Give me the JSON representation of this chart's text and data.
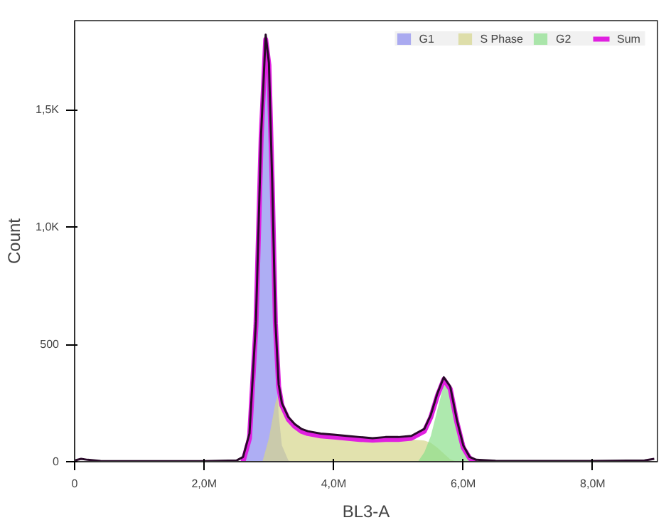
{
  "chart_data": {
    "type": "area",
    "xlabel": "BL3-A",
    "ylabel": "Count",
    "xlim": [
      0,
      9000000
    ],
    "ylim": [
      0,
      1880
    ],
    "xticks": [
      0,
      {
        "value": 2000000,
        "label": "2,0M"
      },
      {
        "value": 4000000,
        "label": "4,0M"
      },
      {
        "value": 6000000,
        "label": "6,0M"
      },
      {
        "value": 8000000,
        "label": "8,0M"
      }
    ],
    "yticks": [
      0,
      500,
      {
        "value": 1000,
        "label": "1,0K"
      },
      {
        "value": 1500,
        "label": "1,5K"
      }
    ],
    "grid": false,
    "legend": "top right",
    "marker": "none",
    "line_style": "solid",
    "series": [
      {
        "name": "G1",
        "color": "#8c8cf0",
        "x": [
          2600000,
          2700000,
          2800000,
          2880000,
          2950000,
          3000000,
          3050000,
          3100000,
          3150000,
          3200000,
          3300000,
          3350000
        ],
        "values": [
          0,
          100,
          580,
          1380,
          1800,
          1650,
          1100,
          500,
          200,
          70,
          5,
          0
        ]
      },
      {
        "name": "S Phase",
        "color": "#d6d68c",
        "x": [
          2900000,
          3000000,
          3100000,
          3150000,
          3200000,
          3300000,
          3400000,
          3500000,
          3600000,
          3800000,
          4000000,
          4200000,
          4400000,
          4600000,
          4800000,
          5000000,
          5200000,
          5400000,
          5500000,
          5600000,
          5700000,
          5800000,
          5900000
        ],
        "values": [
          0,
          100,
          250,
          290,
          250,
          180,
          150,
          130,
          120,
          110,
          105,
          100,
          95,
          92,
          95,
          95,
          95,
          90,
          80,
          60,
          35,
          10,
          0
        ]
      },
      {
        "name": "G2",
        "color": "#8ce08c",
        "x": [
          5300000,
          5400000,
          5500000,
          5600000,
          5700000,
          5800000,
          5900000,
          6000000,
          6100000,
          6200000
        ],
        "values": [
          0,
          40,
          110,
          220,
          330,
          300,
          170,
          60,
          15,
          0
        ]
      },
      {
        "type": "line",
        "color": "#2a0a2a",
        "x": [
          0,
          100000,
          200000,
          400000,
          1000000,
          2000000,
          2500000,
          2600000,
          2700000,
          2800000,
          2880000,
          2950000,
          3000000,
          3050000,
          3100000,
          3150000,
          3200000,
          3300000,
          3400000,
          3500000,
          3600000,
          3800000,
          4000000,
          4200000,
          4400000,
          4600000,
          4800000,
          5000000,
          5200000,
          5400000,
          5500000,
          5600000,
          5700000,
          5800000,
          5900000,
          6000000,
          6100000,
          6200000,
          6500000,
          7000000,
          8000000,
          8800000,
          8950000
        ],
        "values": [
          5,
          12,
          8,
          3,
          2,
          2,
          5,
          20,
          120,
          600,
          1400,
          1820,
          1700,
          1200,
          600,
          330,
          250,
          190,
          160,
          140,
          130,
          120,
          115,
          110,
          105,
          100,
          105,
          105,
          110,
          140,
          200,
          290,
          360,
          320,
          180,
          70,
          20,
          8,
          4,
          3,
          3,
          5,
          12
        ]
      },
      {
        "name": "Sum",
        "type": "line",
        "color": "#e020e0",
        "x": [
          2600000,
          2700000,
          2800000,
          2880000,
          2950000,
          3000000,
          3050000,
          3100000,
          3150000,
          3200000,
          3300000,
          3400000,
          3500000,
          3600000,
          3800000,
          4000000,
          4200000,
          4400000,
          4600000,
          4800000,
          5000000,
          5200000,
          5400000,
          5500000,
          5600000,
          5700000,
          5800000,
          5900000,
          6000000,
          6100000,
          6200000
        ],
        "values": [
          0,
          100,
          580,
          1380,
          1800,
          1690,
          1190,
          590,
          320,
          240,
          180,
          150,
          130,
          120,
          110,
          105,
          100,
          95,
          92,
          95,
          95,
          100,
          130,
          190,
          280,
          350,
          310,
          170,
          60,
          15,
          0
        ]
      }
    ]
  }
}
